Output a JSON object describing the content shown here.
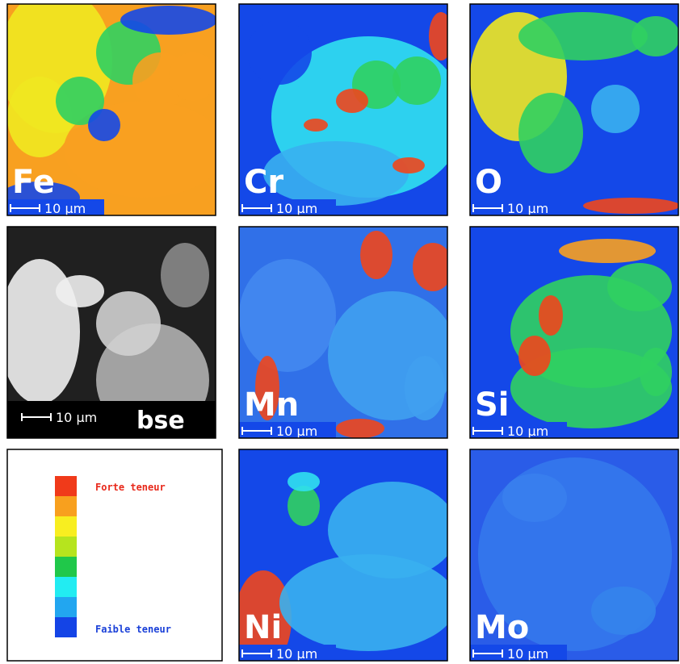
{
  "panels": [
    {
      "label": "Fe",
      "scale": "10 μm"
    },
    {
      "label": "Cr",
      "scale": "10 μm"
    },
    {
      "label": "O",
      "scale": "10 μm"
    },
    {
      "label": "bse",
      "scale": "10 μm"
    },
    {
      "label": "Mn",
      "scale": "10 μm"
    },
    {
      "label": "Si",
      "scale": "10 μm"
    },
    {
      "label": "Ni",
      "scale": "10 μm"
    },
    {
      "label": "Mo",
      "scale": "10 μm"
    }
  ],
  "legend": {
    "high": "Forte teneur",
    "low": "Faible teneur"
  }
}
